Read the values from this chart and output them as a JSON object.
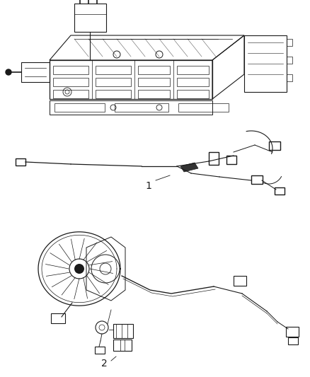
{
  "background_color": "#ffffff",
  "fig_width": 4.38,
  "fig_height": 5.33,
  "dpi": 100,
  "label1": "1",
  "label2": "2",
  "lc": "#1a1a1a",
  "gray": "#888888",
  "lgray": "#cccccc"
}
